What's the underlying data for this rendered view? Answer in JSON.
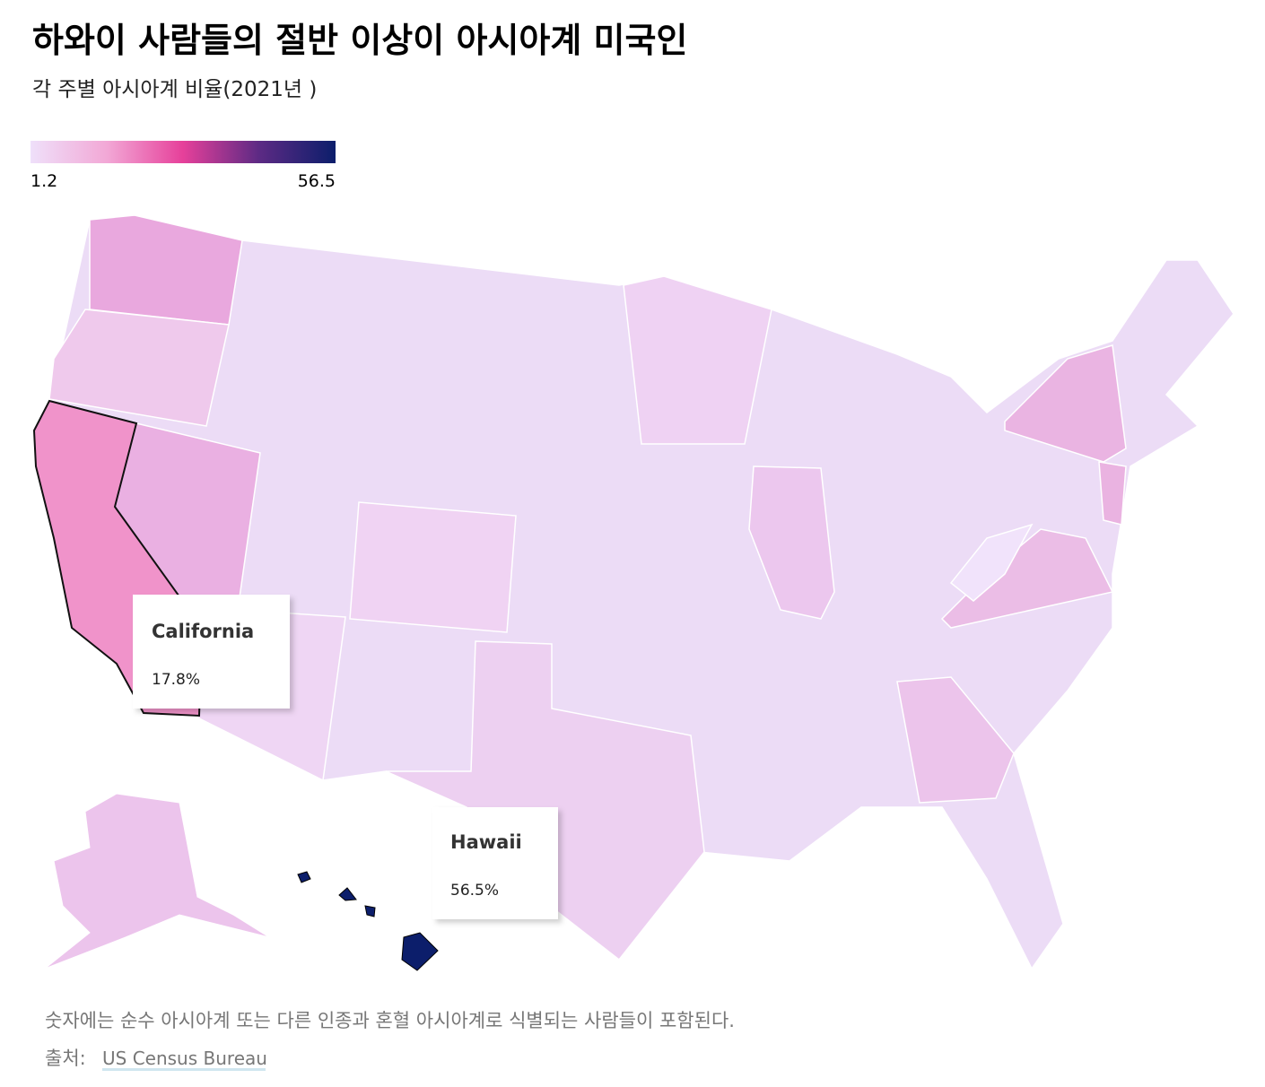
{
  "header": {
    "title": "하와이 사람들의 절반 이상이 아시아계 미국인",
    "subtitle": "각 주별 아시아계 비율(2021년 )"
  },
  "legend": {
    "min": 1.2,
    "max": 56.5,
    "colors": [
      "#efe0fa",
      "#f2a8d6",
      "#e6409a",
      "#5c2a84",
      "#0c1e6b"
    ]
  },
  "tooltips": [
    {
      "name": "California",
      "value": 17.8,
      "label": "17.8%"
    },
    {
      "name": "Hawaii",
      "value": 56.5,
      "label": "56.5%"
    }
  ],
  "footer": {
    "note": "숫자에는 순수 아시아계 또는 다른 인종과 혼혈 아시아계로 식별되는 사람들이 포함된다.",
    "source_label": "출처:",
    "source_link": "US Census Bureau"
  }
}
